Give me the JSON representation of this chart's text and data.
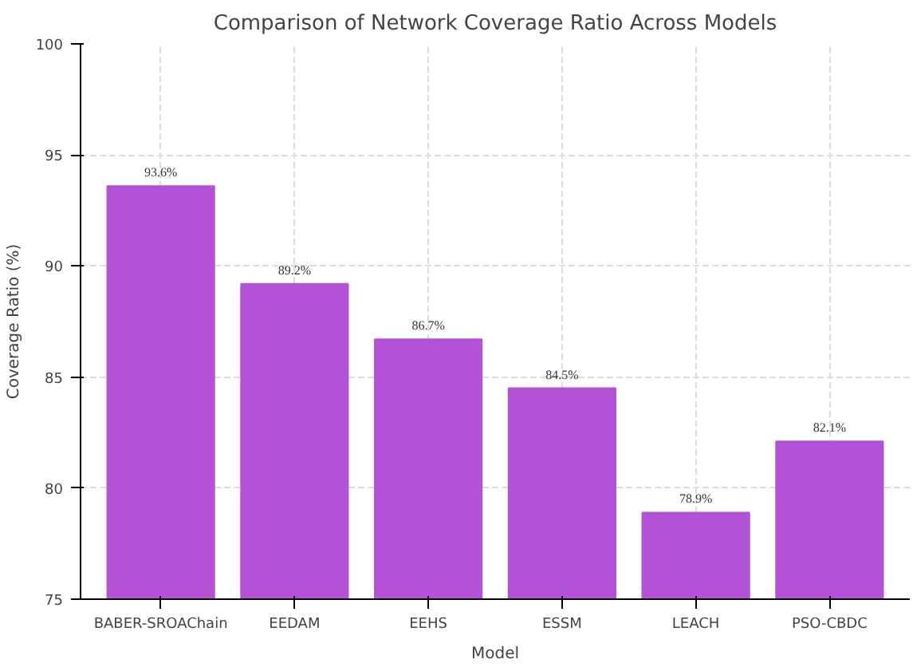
{
  "chart_data": {
    "type": "bar",
    "title": "Comparison of Network Coverage Ratio Across Models",
    "xlabel": "Model",
    "ylabel": "Coverage Ratio (%)",
    "categories": [
      "BABER-SROAChain",
      "EEDAM",
      "EEHS",
      "ESSM",
      "LEACH",
      "PSO-CBDC"
    ],
    "values": [
      93.6,
      89.2,
      86.7,
      84.5,
      78.9,
      82.1
    ],
    "value_labels": [
      "93.6%",
      "89.2%",
      "86.7%",
      "84.5%",
      "78.9%",
      "82.1%"
    ],
    "color": "#b452d6",
    "ylim": [
      75,
      100
    ],
    "yticks": [
      75,
      80,
      85,
      90,
      95,
      100
    ],
    "grid": true
  }
}
